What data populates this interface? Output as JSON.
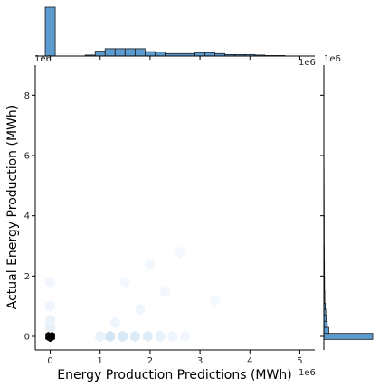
{
  "chart_data": {
    "type": "hexbin-joint",
    "xlabel": "Energy Production Predictions (MWh)",
    "ylabel": "Actual Energy Production (MWh)",
    "x_offset_label": "1e6",
    "y_offset_label": "1e6",
    "top_offset_label": "1e6",
    "right_offset_label": "1e6",
    "xlim": [
      -0.3,
      5.3
    ],
    "ylim": [
      -0.45,
      9.0
    ],
    "x_ticks": [
      0,
      1,
      2,
      3,
      4,
      5
    ],
    "x_tick_labels": [
      "0",
      "1",
      "2",
      "3",
      "4",
      "5"
    ],
    "y_ticks": [
      0,
      2,
      4,
      6,
      8
    ],
    "y_tick_labels": [
      "0",
      "2",
      "4",
      "6",
      "8"
    ],
    "grid": false,
    "colors": {
      "hist_fill": "#5b9bd0",
      "hist_edge": "#1a1a1a",
      "hex_dark": "#000000"
    },
    "hexbins": [
      {
        "x": 0.0,
        "y": 0.0,
        "density": 1.0
      },
      {
        "x": 0.0,
        "y": 0.3,
        "density": 0.06
      },
      {
        "x": 0.0,
        "y": 0.55,
        "density": 0.04
      },
      {
        "x": 0.0,
        "y": 1.0,
        "density": 0.03
      },
      {
        "x": 0.0,
        "y": 1.8,
        "density": 0.02
      },
      {
        "x": 1.2,
        "y": 0.0,
        "density": 0.12
      },
      {
        "x": 1.45,
        "y": 0.0,
        "density": 0.1
      },
      {
        "x": 1.7,
        "y": 0.0,
        "density": 0.09
      },
      {
        "x": 1.95,
        "y": 0.0,
        "density": 0.08
      },
      {
        "x": 1.0,
        "y": 0.0,
        "density": 0.05
      },
      {
        "x": 2.2,
        "y": 0.0,
        "density": 0.05
      },
      {
        "x": 2.45,
        "y": 0.0,
        "density": 0.03
      },
      {
        "x": 2.7,
        "y": 0.0,
        "density": 0.02
      },
      {
        "x": 1.3,
        "y": 0.45,
        "density": 0.03
      },
      {
        "x": 1.8,
        "y": 0.9,
        "density": 0.025
      },
      {
        "x": 2.3,
        "y": 1.5,
        "density": 0.02
      },
      {
        "x": 2.0,
        "y": 2.4,
        "density": 0.02
      },
      {
        "x": 2.6,
        "y": 2.8,
        "density": 0.015
      },
      {
        "x": 3.3,
        "y": 1.2,
        "density": 0.012
      },
      {
        "x": 1.5,
        "y": 1.8,
        "density": 0.015
      }
    ],
    "top_hist": {
      "bin_edges": [
        -0.1,
        0.1,
        0.3,
        0.5,
        0.7,
        0.9,
        1.1,
        1.3,
        1.5,
        1.7,
        1.9,
        2.1,
        2.3,
        2.5,
        2.7,
        2.9,
        3.1,
        3.3,
        3.5,
        3.7,
        3.9,
        4.1,
        4.3,
        4.5,
        4.7,
        4.9,
        5.1
      ],
      "counts": [
        100,
        0,
        0,
        0,
        2,
        10,
        15,
        15,
        15,
        15,
        9,
        8,
        5,
        5,
        5,
        7,
        7,
        5,
        3,
        3,
        3,
        2,
        1,
        1,
        0,
        0
      ]
    },
    "right_hist": {
      "bin_edges": [
        -0.1,
        0.1,
        0.3,
        0.5,
        0.7,
        0.9,
        1.1,
        1.3,
        1.5,
        2.0,
        2.5,
        3.0,
        3.5,
        4.0,
        4.5,
        5.0,
        5.5,
        6.0
      ],
      "counts": [
        100,
        10,
        7,
        5,
        4,
        3,
        2,
        2,
        1.5,
        1.2,
        1,
        0.8,
        0.8,
        0.6,
        0.5,
        0.4,
        0.3
      ]
    }
  }
}
